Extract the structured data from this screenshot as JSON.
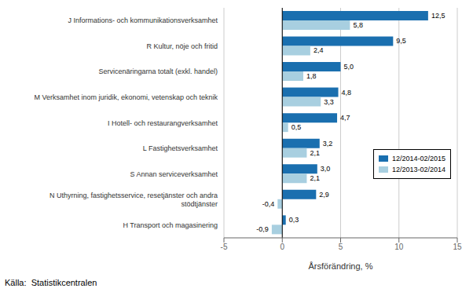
{
  "chart_data": {
    "type": "bar",
    "orientation": "horizontal",
    "categories": [
      "J Informations- och kommunikationsverksamhet",
      "R Kultur, nöje och fritid",
      "Servicenäringarna totalt (exkl. handel)",
      "M Verksamhet inom juridik, ekonomi, vetenskap och teknik",
      "I Hotell- och restaurangverksamhet",
      "L Fastighetsverksamhet",
      "S Annan serviceverksamhet",
      "N Uthyrning, fastighetsservice, resetjänster och andra\nstödtjänster",
      "H Transport och magasinering"
    ],
    "series": [
      {
        "name": "12/2014-02/2015",
        "color": "#1a6faf",
        "values": [
          12.5,
          9.5,
          5.0,
          4.8,
          4.7,
          3.2,
          3.0,
          2.9,
          0.3
        ],
        "value_labels": [
          "12,5",
          "9,5",
          "5,0",
          "4,8",
          "4,7",
          "3,2",
          "3,0",
          "2,9",
          "0,3"
        ]
      },
      {
        "name": "12/2013-02/2014",
        "color": "#a8cfe0",
        "values": [
          5.8,
          2.4,
          1.8,
          3.3,
          0.5,
          2.1,
          2.1,
          -0.4,
          -0.9
        ],
        "value_labels": [
          "5,8",
          "2,4",
          "1,8",
          "3,3",
          "0,5",
          "2,1",
          "2,1",
          "-0,4",
          "-0,9"
        ]
      }
    ],
    "xlabel": "Årsförändring, %",
    "xlim": [
      -5,
      15
    ],
    "xticks": [
      -5,
      0,
      5,
      10,
      15
    ],
    "grid": true,
    "legend": "right",
    "data_labels": true,
    "annotation": "Källa:  Statistikcentralen"
  }
}
